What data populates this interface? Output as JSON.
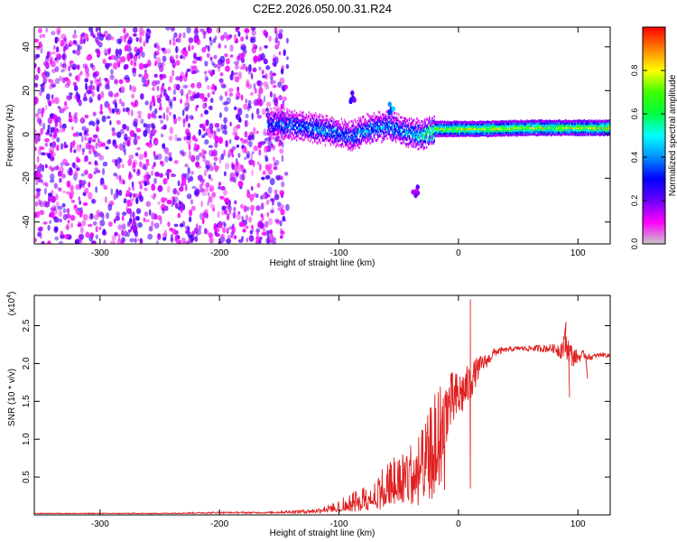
{
  "figure_title": "C2E2.2026.050.00.31.R24",
  "colors": {
    "snr_line": "#e02020",
    "colorbar_stops": [
      "#c8c8c8",
      "#ff00ff",
      "#6a00ff",
      "#0000ff",
      "#0090ff",
      "#00ffff",
      "#00ff40",
      "#40ff00",
      "#ffff00",
      "#ff8000",
      "#ff0000"
    ]
  },
  "chart_data": [
    {
      "type": "heatmap",
      "title": "C2E2.2026.050.00.31.R24",
      "xlabel": "Height of straight line (km)",
      "ylabel": "Frequency (Hz)",
      "xlim": [
        -355,
        127
      ],
      "ylim": [
        -50,
        49
      ],
      "xticks": [
        -300,
        -200,
        -100,
        0,
        100
      ],
      "yticks": [
        -40,
        -20,
        0,
        20,
        40
      ],
      "xtick_labels": [
        "-300",
        "-200",
        "-100",
        "0",
        "100"
      ],
      "ytick_labels": [
        "-40",
        "-20",
        "0",
        "20",
        "40"
      ],
      "colorbar": {
        "label": "Normalized spectral amplitude",
        "range": [
          0.0,
          1.0
        ],
        "ticks": [
          0.0,
          0.2,
          0.4,
          0.6,
          0.8
        ],
        "tick_labels": [
          "0.0",
          "0.2",
          "0.4",
          "0.6",
          "0.8"
        ]
      },
      "features": {
        "noise_region_x": [
          -355,
          -143
        ],
        "noise_amplitude": [
          0.05,
          0.25
        ],
        "carrier_track": [
          {
            "x": -160,
            "f": 5,
            "a": 0.45
          },
          {
            "x": -140,
            "f": 4.5,
            "a": 0.5
          },
          {
            "x": -120,
            "f": 3,
            "a": 0.55
          },
          {
            "x": -100,
            "f": 0.5,
            "a": 0.5
          },
          {
            "x": -90,
            "f": -1,
            "a": 0.5
          },
          {
            "x": -80,
            "f": 2,
            "a": 0.55
          },
          {
            "x": -60,
            "f": 4,
            "a": 0.55
          },
          {
            "x": -40,
            "f": 0.5,
            "a": 0.6
          },
          {
            "x": -30,
            "f": 0,
            "a": 0.75
          },
          {
            "x": -20,
            "f": 2.5,
            "a": 0.85
          },
          {
            "x": -10,
            "f": 2.5,
            "a": 0.85
          },
          {
            "x": 0,
            "f": 2.5,
            "a": 0.9
          },
          {
            "x": 20,
            "f": 2.5,
            "a": 0.9
          },
          {
            "x": 60,
            "f": 3,
            "a": 0.9
          },
          {
            "x": 100,
            "f": 3,
            "a": 0.92
          },
          {
            "x": 127,
            "f": 3,
            "a": 0.92
          }
        ],
        "isolated_blobs": [
          {
            "x": -36,
            "f": -26,
            "a": 0.2
          },
          {
            "x": -88,
            "f": 17,
            "a": 0.25
          },
          {
            "x": -56,
            "f": 12,
            "a": 0.4
          }
        ]
      }
    },
    {
      "type": "line",
      "xlabel": "Height of straight line (km)",
      "ylabel": "SNR (10 * v/v)",
      "y_multiplier_label": "(x10",
      "y_multiplier_exp": "4",
      "y_multiplier_close": ")",
      "xlim": [
        -355,
        127
      ],
      "ylim": [
        0,
        2.9
      ],
      "xticks": [
        -300,
        -200,
        -100,
        0,
        100
      ],
      "yticks": [
        0.5,
        1.0,
        1.5,
        2.0,
        2.5
      ],
      "xtick_labels": [
        "-300",
        "-200",
        "-100",
        "0",
        "100"
      ],
      "ytick_labels": [
        "0.5",
        "1.0",
        "1.5",
        "2.0",
        "2.5"
      ],
      "series": [
        {
          "name": "SNR",
          "x": [
            -355,
            -300,
            -250,
            -200,
            -160,
            -140,
            -120,
            -110,
            -100,
            -90,
            -80,
            -70,
            -60,
            -50,
            -40,
            -30,
            -25,
            -20,
            -15,
            -10,
            -5,
            0,
            5,
            10,
            15,
            20,
            25,
            30,
            40,
            50,
            60,
            70,
            80,
            85,
            90,
            95,
            100,
            105,
            110,
            120,
            127
          ],
          "y": [
            0.02,
            0.02,
            0.02,
            0.03,
            0.03,
            0.04,
            0.05,
            0.08,
            0.12,
            0.17,
            0.22,
            0.3,
            0.42,
            0.5,
            0.55,
            0.65,
            0.8,
            1.05,
            1.25,
            1.4,
            1.5,
            1.55,
            1.65,
            1.75,
            1.9,
            2.0,
            2.05,
            2.15,
            2.18,
            2.2,
            2.2,
            2.2,
            2.2,
            2.18,
            2.25,
            2.1,
            2.08,
            2.12,
            2.08,
            2.12,
            2.1
          ],
          "noise_amplitude": [
            0.005,
            0.005,
            0.005,
            0.01,
            0.01,
            0.02,
            0.03,
            0.05,
            0.08,
            0.12,
            0.15,
            0.22,
            0.3,
            0.38,
            0.42,
            0.5,
            0.55,
            0.6,
            0.5,
            0.45,
            0.4,
            0.35,
            0.3,
            0.25,
            0.18,
            0.12,
            0.08,
            0.06,
            0.03,
            0.03,
            0.04,
            0.05,
            0.06,
            0.12,
            0.18,
            0.15,
            0.08,
            0.05,
            0.04,
            0.03,
            0.03
          ],
          "spikes": [
            {
              "x": 10,
              "y": 2.85
            },
            {
              "x": 10,
              "y": 0.35
            },
            {
              "x": 93,
              "y": 1.55
            },
            {
              "x": 90,
              "y": 2.55
            },
            {
              "x": 108,
              "y": 1.8
            }
          ]
        }
      ]
    }
  ]
}
